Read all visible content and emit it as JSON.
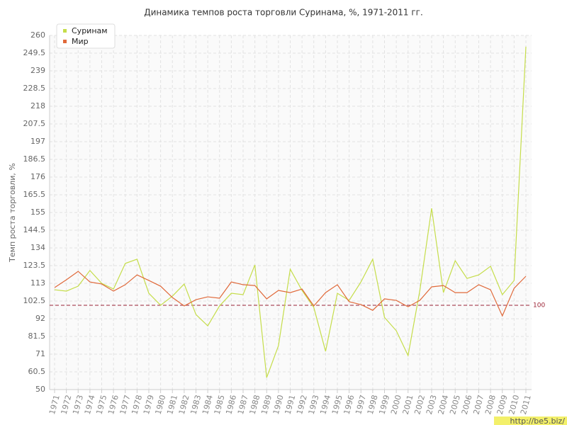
{
  "chart_data": {
    "type": "line",
    "title": "Динамика темпов роста торговли Суринама, %, 1971-2011 гг.",
    "y_label": "Темп роста торговли, %",
    "categories": [
      "1971",
      "1972",
      "1973",
      "1974",
      "1975",
      "1976",
      "1977",
      "1978",
      "1979",
      "1980",
      "1981",
      "1982",
      "1983",
      "1984",
      "1985",
      "1986",
      "1987",
      "1988",
      "1989",
      "1990",
      "1991",
      "1992",
      "1993",
      "1994",
      "1995",
      "1996",
      "1997",
      "1998",
      "1999",
      "2000",
      "2001",
      "2002",
      "2003",
      "2004",
      "2005",
      "2006",
      "2007",
      "2008",
      "2009",
      "2010",
      "2011"
    ],
    "series": [
      {
        "name": "Суринам",
        "color": "#c5dd4a",
        "values": [
          109.2,
          108.4,
          111.3,
          120.6,
          113,
          109.6,
          124.8,
          127.3,
          107.1,
          100,
          105.4,
          112.6,
          94.5,
          87.8,
          99.6,
          107.1,
          106.3,
          123.9,
          57.1,
          76,
          121.4,
          108.8,
          98.7,
          72.7,
          107.1,
          102.9,
          113.8,
          127.3,
          92.8,
          84.9,
          70.2,
          108.8,
          157.5,
          107.5,
          126.4,
          115.9,
          118,
          123.1,
          106.3,
          114.7,
          253.3
        ]
      },
      {
        "name": "Мир",
        "color": "#e0693a",
        "values": [
          110.5,
          115.1,
          120.1,
          113.8,
          112.6,
          108.4,
          112.2,
          118,
          114.7,
          111.3,
          104.6,
          99.6,
          103.3,
          105,
          104.2,
          113.8,
          112.2,
          111.7,
          103.8,
          108.8,
          107.5,
          109.6,
          99.6,
          107.5,
          112.2,
          102.1,
          100.4,
          97,
          103.8,
          102.9,
          99.1,
          102.9,
          110.9,
          111.7,
          107.5,
          107.5,
          112.2,
          109.2,
          93.7,
          110.1,
          117.2
        ]
      }
    ],
    "ylim": [
      50,
      260
    ],
    "yticks": [
      50,
      60.5,
      71,
      81.5,
      92,
      102.5,
      113,
      123.5,
      134,
      144.5,
      155,
      165.5,
      176,
      186.5,
      197,
      207.5,
      218,
      228.5,
      239,
      249.5,
      260
    ],
    "hline": 100,
    "hline_color": "#9b2335",
    "grid": true,
    "legend": "top-left",
    "watermark": "http://be5.biz/"
  }
}
